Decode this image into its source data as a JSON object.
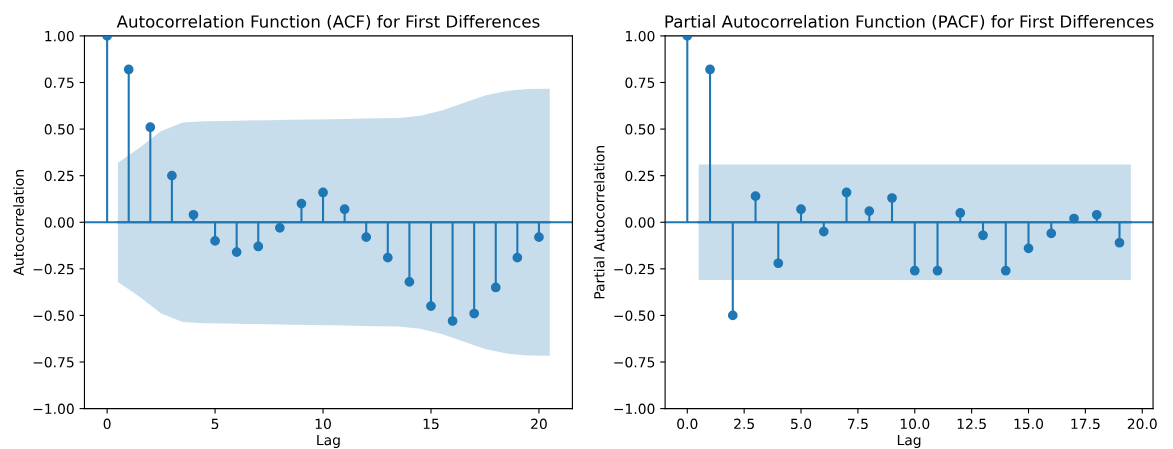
{
  "chart_data": [
    {
      "type": "lollipop",
      "title": "Autocorrelation Function (ACF) for First Differences",
      "xlabel": "Lag",
      "ylabel": "Autocorrelation",
      "xlim": [
        -1.05,
        21.55
      ],
      "ylim": [
        -1.0,
        1.0
      ],
      "xticks": [
        0,
        5,
        10,
        15,
        20
      ],
      "yticks": [
        {
          "value": -1.0,
          "label": "−1.00"
        },
        {
          "value": -0.75,
          "label": "−0.75"
        },
        {
          "value": -0.5,
          "label": "−0.50"
        },
        {
          "value": -0.25,
          "label": "−0.25"
        },
        {
          "value": 0.0,
          "label": "0.00"
        },
        {
          "value": 0.25,
          "label": "0.25"
        },
        {
          "value": 0.5,
          "label": "0.50"
        },
        {
          "value": 0.75,
          "label": "0.75"
        },
        {
          "value": 1.0,
          "label": "1.00"
        }
      ],
      "marker": "circle",
      "ref_lines": [
        {
          "axis": "y",
          "value": 0,
          "color": "#1f77b4"
        }
      ],
      "series": [
        {
          "type": "line",
          "marker": "none",
          "color": "#1f77b4",
          "values": [
            0,
            0,
            0,
            0,
            0,
            0,
            0,
            0,
            0,
            0,
            0,
            0,
            0,
            0,
            0,
            0,
            0,
            0,
            0,
            0,
            0
          ],
          "x": [
            0.5,
            1.5,
            2.5,
            3.5,
            4.5,
            5.5,
            6.5,
            7.5,
            8.5,
            9.5,
            10.5,
            11.5,
            12.5,
            13.5,
            14.5,
            15.5,
            16.5,
            17.5,
            18.5,
            19.5,
            20.5
          ],
          "upper": [
            0.32,
            0.4,
            0.49,
            0.535,
            0.542,
            0.544,
            0.546,
            0.548,
            0.55,
            0.551,
            0.553,
            0.556,
            0.558,
            0.56,
            0.572,
            0.6,
            0.64,
            0.68,
            0.705,
            0.715,
            0.717
          ],
          "lower": [
            -0.32,
            -0.4,
            -0.49,
            -0.535,
            -0.542,
            -0.544,
            -0.546,
            -0.548,
            -0.55,
            -0.551,
            -0.553,
            -0.556,
            -0.558,
            -0.56,
            -0.572,
            -0.6,
            -0.64,
            -0.68,
            -0.705,
            -0.715,
            -0.717
          ]
        },
        {
          "color": "#1f77b4",
          "x": [
            0,
            1,
            2,
            3,
            4,
            5,
            6,
            7,
            8,
            9,
            10,
            11,
            12,
            13,
            14,
            15,
            16,
            17,
            18,
            19,
            20
          ],
          "values": [
            1.0,
            0.82,
            0.51,
            0.25,
            0.04,
            -0.1,
            -0.16,
            -0.13,
            -0.03,
            0.1,
            0.16,
            0.07,
            -0.08,
            -0.19,
            -0.32,
            -0.45,
            -0.53,
            -0.49,
            -0.35,
            -0.19,
            -0.08
          ]
        }
      ]
    },
    {
      "type": "lollipop",
      "title": "Partial Autocorrelation Function (PACF) for First Differences",
      "xlabel": "Lag",
      "ylabel": "Partial Autocorrelation",
      "xlim": [
        -0.975,
        20.475
      ],
      "ylim": [
        -1.0,
        1.0
      ],
      "xticks": [
        {
          "value": 0.0,
          "label": "0.0"
        },
        {
          "value": 2.5,
          "label": "2.5"
        },
        {
          "value": 5.0,
          "label": "5.0"
        },
        {
          "value": 7.5,
          "label": "7.5"
        },
        {
          "value": 10.0,
          "label": "10.0"
        },
        {
          "value": 12.5,
          "label": "12.5"
        },
        {
          "value": 15.0,
          "label": "15.0"
        },
        {
          "value": 17.5,
          "label": "17.5"
        },
        {
          "value": 20.0,
          "label": "20.0"
        }
      ],
      "yticks": [
        {
          "value": -1.0,
          "label": "−1.00"
        },
        {
          "value": -0.75,
          "label": "−0.75"
        },
        {
          "value": -0.5,
          "label": "−0.50"
        },
        {
          "value": -0.25,
          "label": "−0.25"
        },
        {
          "value": 0.0,
          "label": "0.00"
        },
        {
          "value": 0.25,
          "label": "0.25"
        },
        {
          "value": 0.5,
          "label": "0.50"
        },
        {
          "value": 0.75,
          "label": "0.75"
        },
        {
          "value": 1.0,
          "label": "1.00"
        }
      ],
      "marker": "circle",
      "ref_lines": [
        {
          "axis": "y",
          "value": 0,
          "color": "#1f77b4"
        }
      ],
      "series": [
        {
          "type": "line",
          "marker": "none",
          "color": "#1f77b4",
          "values": [
            0,
            0
          ],
          "x": [
            0.5,
            19.5
          ],
          "upper": [
            0.31,
            0.31
          ],
          "lower": [
            -0.31,
            -0.31
          ]
        },
        {
          "color": "#1f77b4",
          "x": [
            0,
            1,
            2,
            3,
            4,
            5,
            6,
            7,
            8,
            9,
            10,
            11,
            12,
            13,
            14,
            15,
            16,
            17,
            18,
            19
          ],
          "values": [
            1.0,
            0.82,
            -0.5,
            0.14,
            -0.22,
            0.07,
            -0.05,
            0.16,
            0.06,
            0.13,
            -0.26,
            -0.26,
            0.05,
            -0.07,
            -0.26,
            -0.14,
            -0.06,
            0.02,
            0.04,
            -0.11
          ]
        }
      ]
    }
  ]
}
